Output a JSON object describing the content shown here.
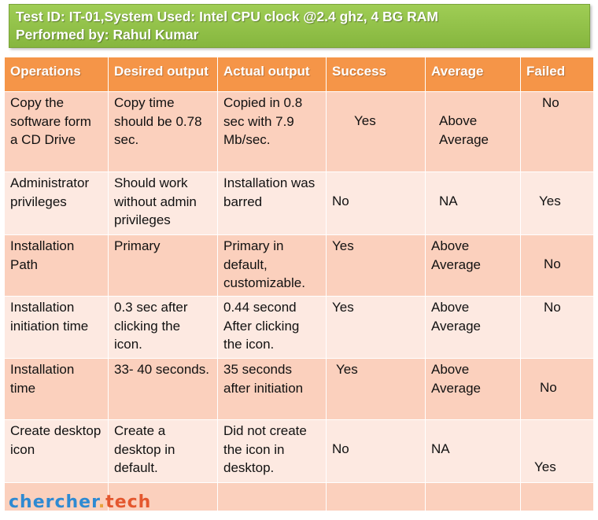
{
  "banner": {
    "line1": "Test ID: IT-01,System Used: Intel CPU clock @2.4 ghz, 4 BG RAM",
    "line2": "Performed by: Rahul Kumar"
  },
  "table": {
    "headers": [
      "Operations",
      "Desired output",
      "Actual output",
      "Success",
      "Average",
      "Failed"
    ],
    "rows": [
      [
        "Copy the software form a CD Drive",
        "Copy time should be 0.78 sec.",
        "Copied in 0.8 sec with 7.9 Mb/sec.",
        "Yes",
        "Above Average",
        "No"
      ],
      [
        "Administrator privileges",
        "Should work without admin privileges",
        "Installation was barred",
        "No",
        "NA",
        "Yes"
      ],
      [
        "Installation Path",
        "Primary",
        "Primary in default, customizable.",
        "Yes",
        "Above Average",
        "No"
      ],
      [
        "Installation initiation time",
        "0.3 sec after clicking the icon.",
        "0.44 second After clicking the icon.",
        "Yes",
        "Above Average",
        "No"
      ],
      [
        "Installation time",
        "33- 40 seconds.",
        "35 seconds after initiation",
        "Yes",
        "Above Average",
        "No"
      ],
      [
        "Create desktop icon",
        "Create a desktop in default.",
        "Did not create the icon in desktop.",
        "No",
        "NA",
        "Yes"
      ],
      [
        "",
        "",
        "",
        "",
        "",
        ""
      ]
    ]
  },
  "logo": {
    "part1": "chercher",
    "part2": ".",
    "part3": "tech"
  }
}
